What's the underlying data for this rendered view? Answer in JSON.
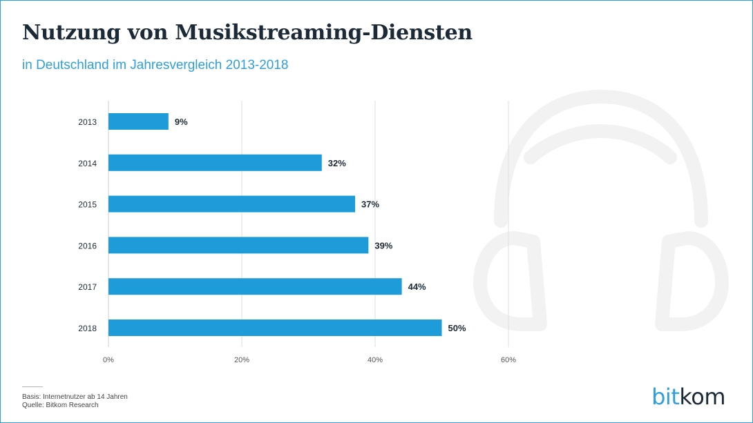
{
  "header": {
    "title": "Nutzung von Musikstreaming-Diensten",
    "subtitle": "in Deutschland im Jahresvergleich 2013-2018"
  },
  "chart_data": {
    "type": "bar",
    "orientation": "horizontal",
    "categories": [
      "2013",
      "2014",
      "2015",
      "2016",
      "2017",
      "2018"
    ],
    "values": [
      9,
      32,
      37,
      39,
      44,
      50
    ],
    "value_labels": [
      "9%",
      "32%",
      "37%",
      "39%",
      "44%",
      "50%"
    ],
    "x_ticks": [
      "0%",
      "20%",
      "40%",
      "60%"
    ],
    "xlim": [
      0,
      60
    ],
    "grid": true,
    "bar_color": "#1e9cd9",
    "label_color": "#1b2a36"
  },
  "footer": {
    "basis": "Basis: Internetnutzer ab 14 Jahren",
    "source": "Quelle: Bitkom Research"
  },
  "brand": {
    "part1": "bit",
    "part2": "kom",
    "icon": "headphones-icon"
  }
}
